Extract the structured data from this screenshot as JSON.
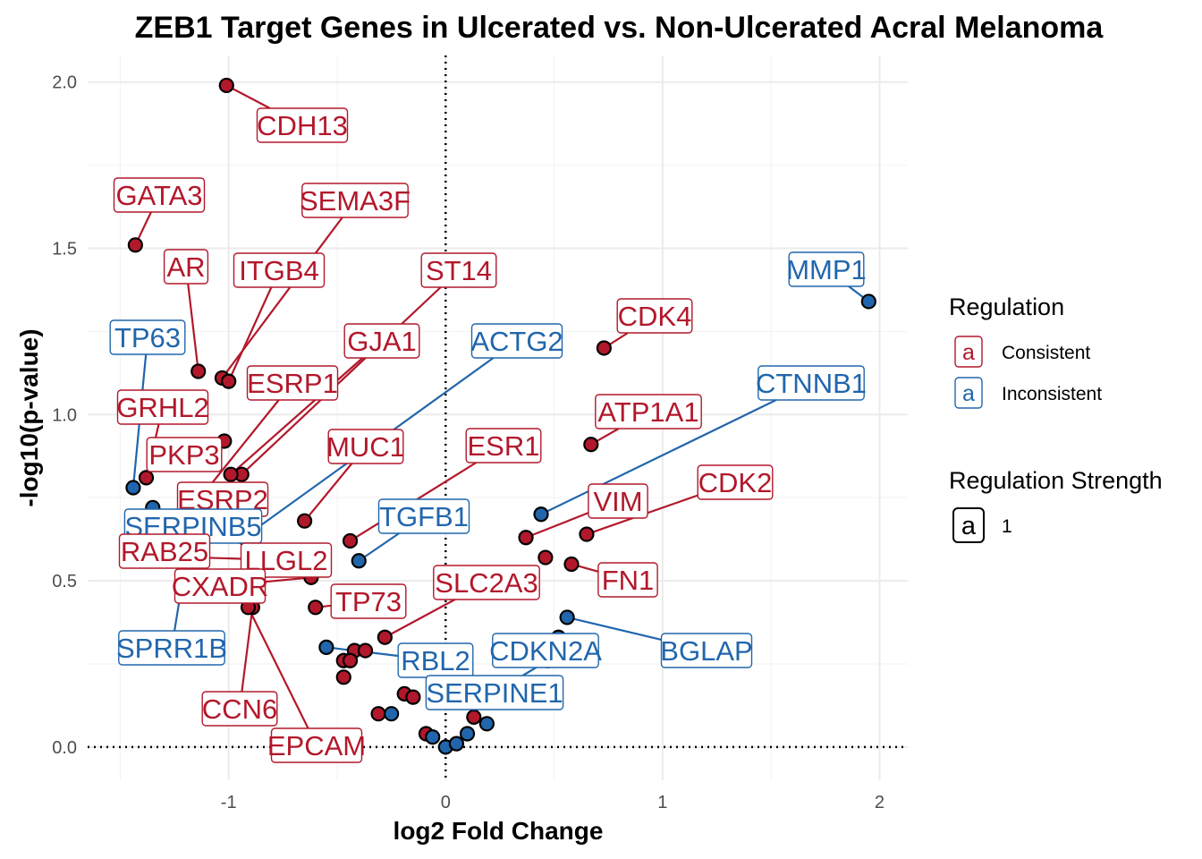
{
  "chart_data": {
    "type": "scatter",
    "title": "ZEB1 Target Genes in Ulcerated vs. Non-Ulcerated Acral Melanoma",
    "xlabel": "log2 Fold Change",
    "ylabel": "-log10(p-value)",
    "xlim": [
      -1.65,
      2.13
    ],
    "ylim": [
      -0.1,
      2.08
    ],
    "xticks": [
      -1,
      0,
      1,
      2
    ],
    "xtick_labels": [
      "-1",
      "0",
      "1",
      "2"
    ],
    "yticks": [
      0.0,
      0.5,
      1.0,
      1.5,
      2.0
    ],
    "ytick_labels": [
      "0.0",
      "0.5",
      "1.0",
      "1.5",
      "2.0"
    ],
    "grid": true,
    "reference_lines": {
      "x": 0,
      "y": 0,
      "style": "dotted"
    },
    "colors": {
      "Consistent": "#b2182b",
      "Inconsistent": "#2166ac"
    },
    "legend": {
      "position": "right",
      "regulation_title": "Regulation",
      "key_glyph": "a",
      "regulation_items": [
        "Consistent",
        "Inconsistent"
      ],
      "strength_title": "Regulation Strength",
      "strength_items": [
        "1"
      ]
    },
    "labeled_points": [
      {
        "gene": "CDH13",
        "x": -1.01,
        "y": 1.99,
        "regulation": "Consistent"
      },
      {
        "gene": "GATA3",
        "x": -1.43,
        "y": 1.51,
        "regulation": "Consistent"
      },
      {
        "gene": "AR",
        "x": -1.14,
        "y": 1.13,
        "regulation": "Consistent"
      },
      {
        "gene": "SEMA3F",
        "x": -1.03,
        "y": 1.11,
        "regulation": "Consistent"
      },
      {
        "gene": "ITGB4",
        "x": -1.0,
        "y": 1.1,
        "regulation": "Consistent"
      },
      {
        "gene": "TP63",
        "x": -1.44,
        "y": 0.78,
        "regulation": "Inconsistent"
      },
      {
        "gene": "GRHL2",
        "x": -1.38,
        "y": 0.81,
        "regulation": "Consistent"
      },
      {
        "gene": "PKP3",
        "x": -1.02,
        "y": 0.92,
        "regulation": "Consistent"
      },
      {
        "gene": "ST14",
        "x": -0.94,
        "y": 0.82,
        "regulation": "Consistent"
      },
      {
        "gene": "GJA1",
        "x": -0.99,
        "y": 0.82,
        "regulation": "Consistent"
      },
      {
        "gene": "ESRP1",
        "x": -1.18,
        "y": 0.71,
        "regulation": "Consistent"
      },
      {
        "gene": "ACTG2",
        "x": -0.93,
        "y": 0.63,
        "regulation": "Inconsistent"
      },
      {
        "gene": "ESRP2",
        "x": -1.22,
        "y": 0.67,
        "regulation": "Consistent"
      },
      {
        "gene": "MUC1",
        "x": -0.65,
        "y": 0.68,
        "regulation": "Consistent"
      },
      {
        "gene": "SERPINB5",
        "x": -1.35,
        "y": 0.72,
        "regulation": "Inconsistent"
      },
      {
        "gene": "RAB25",
        "x": -1.35,
        "y": 0.56,
        "regulation": "Consistent"
      },
      {
        "gene": "ESR1",
        "x": -0.44,
        "y": 0.62,
        "regulation": "Consistent"
      },
      {
        "gene": "TGFB1",
        "x": -0.4,
        "y": 0.56,
        "regulation": "Inconsistent"
      },
      {
        "gene": "LLGL2",
        "x": -1.14,
        "y": 0.57,
        "regulation": "Consistent"
      },
      {
        "gene": "CXADR",
        "x": -0.62,
        "y": 0.51,
        "regulation": "Consistent"
      },
      {
        "gene": "SPRR1B",
        "x": -1.2,
        "y": 0.55,
        "regulation": "Inconsistent"
      },
      {
        "gene": "TP73",
        "x": -0.6,
        "y": 0.42,
        "regulation": "Consistent"
      },
      {
        "gene": "CCN6",
        "x": -0.89,
        "y": 0.42,
        "regulation": "Consistent"
      },
      {
        "gene": "EPCAM",
        "x": -0.91,
        "y": 0.42,
        "regulation": "Consistent"
      },
      {
        "gene": "SLC2A3",
        "x": -0.28,
        "y": 0.33,
        "regulation": "Consistent"
      },
      {
        "gene": "RBL2",
        "x": -0.55,
        "y": 0.3,
        "regulation": "Inconsistent"
      },
      {
        "gene": "CDKN2A",
        "x": 0.52,
        "y": 0.33,
        "regulation": "Inconsistent"
      },
      {
        "gene": "SERPINE1",
        "x": 0.47,
        "y": 0.26,
        "regulation": "Inconsistent"
      },
      {
        "gene": "BGLAP",
        "x": 0.56,
        "y": 0.39,
        "regulation": "Inconsistent"
      },
      {
        "gene": "MMP1",
        "x": 1.95,
        "y": 1.34,
        "regulation": "Inconsistent"
      },
      {
        "gene": "CDK4",
        "x": 0.73,
        "y": 1.2,
        "regulation": "Consistent"
      },
      {
        "gene": "CTNNB1",
        "x": 0.44,
        "y": 0.7,
        "regulation": "Inconsistent"
      },
      {
        "gene": "ATP1A1",
        "x": 0.67,
        "y": 0.91,
        "regulation": "Consistent"
      },
      {
        "gene": "CDK2",
        "x": 0.65,
        "y": 0.64,
        "regulation": "Consistent"
      },
      {
        "gene": "VIM",
        "x": 0.37,
        "y": 0.63,
        "regulation": "Consistent"
      },
      {
        "gene": "FN1",
        "x": 0.58,
        "y": 0.55,
        "regulation": "Consistent"
      }
    ],
    "other_points": [
      {
        "x": 0.46,
        "y": 0.57,
        "regulation": "Consistent"
      },
      {
        "x": -0.47,
        "y": 0.26,
        "regulation": "Consistent"
      },
      {
        "x": -0.42,
        "y": 0.29,
        "regulation": "Consistent"
      },
      {
        "x": -0.37,
        "y": 0.29,
        "regulation": "Consistent"
      },
      {
        "x": -0.44,
        "y": 0.26,
        "regulation": "Consistent"
      },
      {
        "x": -0.47,
        "y": 0.21,
        "regulation": "Consistent"
      },
      {
        "x": -0.19,
        "y": 0.16,
        "regulation": "Consistent"
      },
      {
        "x": -0.31,
        "y": 0.1,
        "regulation": "Consistent"
      },
      {
        "x": -0.25,
        "y": 0.1,
        "regulation": "Inconsistent"
      },
      {
        "x": -0.09,
        "y": 0.04,
        "regulation": "Consistent"
      },
      {
        "x": -0.06,
        "y": 0.03,
        "regulation": "Inconsistent"
      },
      {
        "x": 0.0,
        "y": 0.0,
        "regulation": "Inconsistent"
      },
      {
        "x": 0.05,
        "y": 0.01,
        "regulation": "Inconsistent"
      },
      {
        "x": 0.1,
        "y": 0.04,
        "regulation": "Inconsistent"
      },
      {
        "x": 0.13,
        "y": 0.09,
        "regulation": "Consistent"
      },
      {
        "x": 0.19,
        "y": 0.07,
        "regulation": "Inconsistent"
      },
      {
        "x": -0.15,
        "y": 0.15,
        "regulation": "Consistent"
      }
    ]
  }
}
